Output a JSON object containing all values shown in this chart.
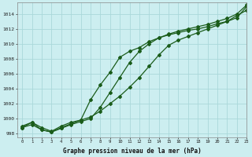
{
  "background_color": "#cceef0",
  "grid_color": "#aad8da",
  "line_color": "#1a5c1a",
  "title": "Graphe pression niveau de la mer (hPa)",
  "xlim": [
    -0.5,
    23
  ],
  "ylim": [
    997.5,
    1015.5
  ],
  "yticks": [
    998,
    1000,
    1002,
    1004,
    1006,
    1008,
    1010,
    1012,
    1014
  ],
  "xticks": [
    0,
    1,
    2,
    3,
    4,
    5,
    6,
    7,
    8,
    9,
    10,
    11,
    12,
    13,
    14,
    15,
    16,
    17,
    18,
    19,
    20,
    21,
    22,
    23
  ],
  "series1_x": [
    0,
    1,
    2,
    3,
    4,
    5,
    6,
    7,
    8,
    9,
    10,
    11,
    12,
    13,
    14,
    15,
    16,
    17,
    18,
    19,
    20,
    21,
    22,
    23
  ],
  "series1_y": [
    999.0,
    999.5,
    998.8,
    998.3,
    999.0,
    999.5,
    999.8,
    1000.2,
    1001.0,
    1002.0,
    1003.0,
    1004.2,
    1005.5,
    1007.0,
    1008.5,
    1009.8,
    1010.5,
    1011.0,
    1011.5,
    1012.0,
    1012.5,
    1013.0,
    1013.8,
    1014.5
  ],
  "series2_x": [
    0,
    1,
    2,
    3,
    4,
    5,
    6,
    7,
    8,
    9,
    10,
    11,
    12,
    13,
    14,
    15,
    16,
    17,
    18,
    19,
    20,
    21,
    22,
    23
  ],
  "series2_y": [
    998.8,
    999.5,
    998.5,
    998.2,
    998.8,
    999.3,
    999.8,
    1002.5,
    1004.5,
    1006.2,
    1008.2,
    1009.0,
    1009.5,
    1010.3,
    1010.8,
    1011.2,
    1011.5,
    1011.8,
    1012.0,
    1012.3,
    1012.7,
    1013.0,
    1013.5,
    1015.0
  ],
  "series3_x": [
    0,
    1,
    2,
    3,
    4,
    5,
    6,
    7,
    8,
    9,
    10,
    11,
    12,
    13,
    14,
    15,
    16,
    17,
    18,
    19,
    20,
    21,
    22,
    23
  ],
  "series3_y": [
    998.8,
    999.2,
    998.5,
    998.2,
    998.7,
    999.2,
    999.6,
    1000.0,
    1001.5,
    1003.5,
    1005.5,
    1007.5,
    1009.0,
    1010.0,
    1010.8,
    1011.3,
    1011.7,
    1012.0,
    1012.3,
    1012.6,
    1013.0,
    1013.4,
    1014.0,
    1015.2
  ]
}
